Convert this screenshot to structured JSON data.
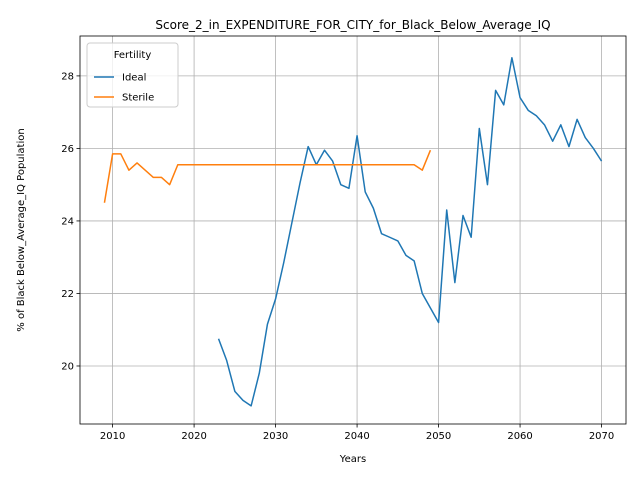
{
  "chart_data": {
    "type": "line",
    "title": "Score_2_in_EXPENDITURE_FOR_CITY_for_Black_Below_Average_IQ",
    "xlabel": "Years",
    "ylabel": "% of Black Below_Average_IQ Population",
    "xlim": [
      2006,
      2073
    ],
    "ylim": [
      18.4,
      29.1
    ],
    "xticks": [
      2010,
      2020,
      2030,
      2040,
      2050,
      2060,
      2070
    ],
    "yticks": [
      20,
      22,
      24,
      26,
      28
    ],
    "grid": true,
    "legend": {
      "title": "Fertility",
      "placement": "top-left"
    },
    "series": [
      {
        "name": "Ideal",
        "color": "#1f77b4",
        "x": [
          2023,
          2024,
          2025,
          2026,
          2027,
          2028,
          2029,
          2030,
          2031,
          2032,
          2033,
          2034,
          2035,
          2036,
          2037,
          2038,
          2039,
          2040,
          2041,
          2042,
          2043,
          2044,
          2045,
          2046,
          2047,
          2048,
          2049,
          2050,
          2051,
          2052,
          2053,
          2054,
          2055,
          2056,
          2057,
          2058,
          2059,
          2060,
          2061,
          2062,
          2063,
          2064,
          2065,
          2066,
          2067,
          2068,
          2069,
          2070
        ],
        "values": [
          20.75,
          20.15,
          19.3,
          19.05,
          18.9,
          19.8,
          21.15,
          21.85,
          22.85,
          23.95,
          25.05,
          26.05,
          25.55,
          25.95,
          25.65,
          25.0,
          24.9,
          26.35,
          24.8,
          24.35,
          23.65,
          23.55,
          23.45,
          23.05,
          22.9,
          22.0,
          21.6,
          21.2,
          24.3,
          22.3,
          24.15,
          23.55,
          26.55,
          25.0,
          27.6,
          27.2,
          28.5,
          27.4,
          27.05,
          26.9,
          26.65,
          26.2,
          26.65,
          26.05,
          26.8,
          26.3,
          26.0,
          25.65
        ]
      },
      {
        "name": "Sterile",
        "color": "#ff7f0e",
        "x": [
          2009,
          2010,
          2011,
          2012,
          2013,
          2014,
          2015,
          2016,
          2017,
          2018,
          2019,
          2020,
          2021,
          2022,
          2023,
          2024,
          2025,
          2026,
          2027,
          2028,
          2029,
          2030,
          2031,
          2032,
          2033,
          2034,
          2035,
          2036,
          2037,
          2038,
          2039,
          2040,
          2041,
          2042,
          2043,
          2044,
          2045,
          2046,
          2047,
          2048,
          2049
        ],
        "values": [
          24.5,
          25.85,
          25.85,
          25.4,
          25.6,
          25.4,
          25.2,
          25.2,
          25.0,
          25.55,
          25.55,
          25.55,
          25.55,
          25.55,
          25.55,
          25.55,
          25.55,
          25.55,
          25.55,
          25.55,
          25.55,
          25.55,
          25.55,
          25.55,
          25.55,
          25.55,
          25.55,
          25.55,
          25.55,
          25.55,
          25.55,
          25.55,
          25.55,
          25.55,
          25.55,
          25.55,
          25.55,
          25.55,
          25.55,
          25.4,
          25.95
        ]
      }
    ]
  }
}
